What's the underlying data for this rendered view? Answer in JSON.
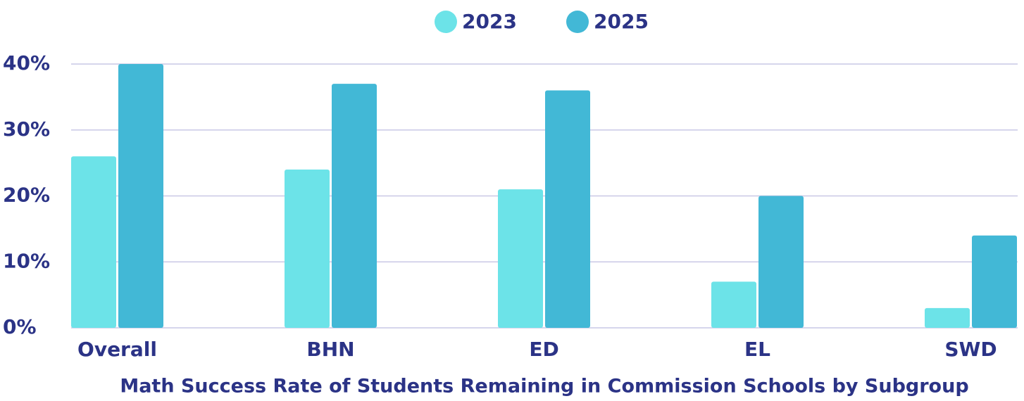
{
  "chart_data": {
    "type": "bar",
    "title": "Math Success Rate of Students Remaining in Commission Schools by Subgroup",
    "categories": [
      "Overall",
      "BHN",
      "ED",
      "EL",
      "SWD"
    ],
    "series": [
      {
        "name": "2023",
        "color": "#6ce3e8",
        "values": [
          26,
          24,
          21,
          7,
          3
        ]
      },
      {
        "name": "2025",
        "color": "#42b8d6",
        "values": [
          40,
          37,
          36,
          20,
          14
        ]
      }
    ],
    "ylim": [
      0,
      40
    ],
    "yticks": [
      {
        "value": 0,
        "label": "0%"
      },
      {
        "value": 10,
        "label": "10%"
      },
      {
        "value": 20,
        "label": "20%"
      },
      {
        "value": 30,
        "label": "30%"
      },
      {
        "value": 40,
        "label": "40%"
      }
    ],
    "grid": true,
    "legend": "top"
  }
}
